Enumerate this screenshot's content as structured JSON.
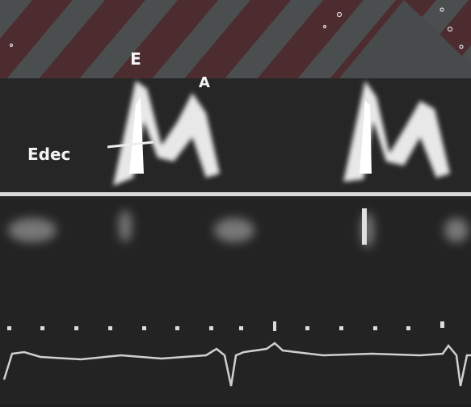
{
  "labels": {
    "e": "E",
    "a": "A",
    "edec": "Edec"
  }
}
